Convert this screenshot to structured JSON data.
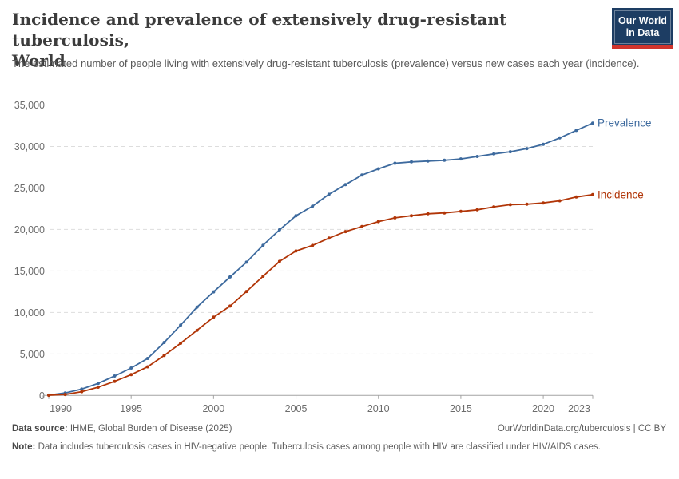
{
  "header": {
    "title_line1": "Incidence and prevalence of extensively drug-resistant tuberculosis,",
    "title_line2": "World",
    "subtitle": "The estimated number of people living with extensively drug-resistant tuberculosis (prevalence) versus new cases each year (incidence).",
    "logo": {
      "line1": "Our World",
      "line2": "in Data",
      "bg_color": "#1d3d63",
      "accent_color": "#d0342c"
    }
  },
  "chart_data": {
    "type": "line",
    "title": "Incidence and prevalence of extensively drug-resistant tuberculosis, World",
    "xlabel": "",
    "ylabel": "",
    "grid": "horizontal-dashed",
    "legend_position": "right-of-line-ends",
    "xlim": [
      1990,
      2023
    ],
    "ylim": [
      0,
      35000
    ],
    "xticks": [
      1990,
      1995,
      2000,
      2005,
      2010,
      2015,
      2020,
      2023
    ],
    "yticks": [
      0,
      5000,
      10000,
      15000,
      20000,
      25000,
      30000,
      35000
    ],
    "ytick_labels": [
      "0",
      "5,000",
      "10,000",
      "15,000",
      "20,000",
      "25,000",
      "30,000",
      "35,000"
    ],
    "x": [
      1990,
      1991,
      1992,
      1993,
      1994,
      1995,
      1996,
      1997,
      1998,
      1999,
      2000,
      2001,
      2002,
      2003,
      2004,
      2005,
      2006,
      2007,
      2008,
      2009,
      2010,
      2011,
      2012,
      2013,
      2014,
      2015,
      2016,
      2017,
      2018,
      2019,
      2020,
      2021,
      2022,
      2023
    ],
    "series": [
      {
        "name": "Prevalence",
        "color": "#3d6a9e",
        "values": [
          40,
          300,
          760,
          1450,
          2340,
          3300,
          4450,
          6380,
          8470,
          10650,
          12480,
          14280,
          16060,
          18100,
          19950,
          21650,
          22800,
          24230,
          25400,
          26550,
          27300,
          27980,
          28140,
          28240,
          28330,
          28500,
          28790,
          29100,
          29360,
          29750,
          30260,
          31030,
          31930,
          32820
        ]
      },
      {
        "name": "Incidence",
        "color": "#b13507",
        "values": [
          25,
          120,
          450,
          990,
          1690,
          2500,
          3440,
          4810,
          6280,
          7850,
          9430,
          10770,
          12530,
          14360,
          16150,
          17400,
          18080,
          18950,
          19740,
          20350,
          20940,
          21400,
          21660,
          21890,
          21990,
          22180,
          22370,
          22720,
          22980,
          23040,
          23200,
          23460,
          23910,
          24200
        ]
      }
    ],
    "axis_colors": {
      "gridline": "#dddddd",
      "axis_line": "#a3a3a3",
      "tick_label": "#6c6c6c"
    }
  },
  "footer": {
    "source_label": "Data source:",
    "source_text": " IHME, Global Burden of Disease (2025)",
    "attribution": "OurWorldinData.org/tuberculosis | CC BY",
    "note_label": "Note:",
    "note_text": " Data includes tuberculosis cases in HIV-negative people. Tuberculosis cases among people with HIV are classified under HIV/AIDS cases."
  }
}
